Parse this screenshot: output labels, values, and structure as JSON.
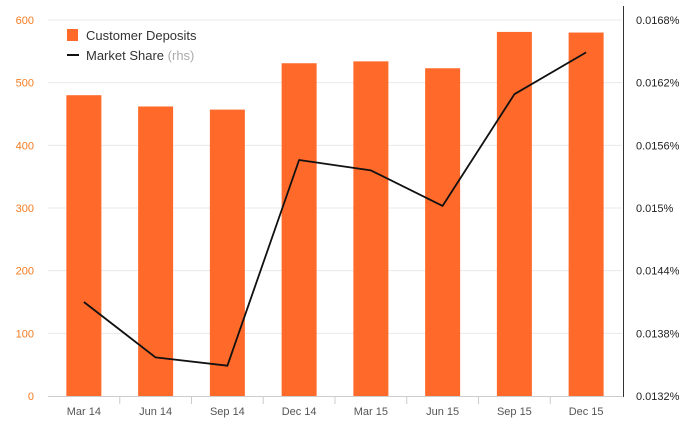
{
  "chart_data": {
    "type": "bar",
    "categories": [
      "Mar 14",
      "Jun 14",
      "Sep 14",
      "Dec 14",
      "Mar 15",
      "Jun 15",
      "Sep 15",
      "Dec 15"
    ],
    "series": [
      {
        "name": "Customer Deposits",
        "type": "bar",
        "axis": "left",
        "values": [
          480,
          462,
          457,
          531,
          534,
          523,
          581,
          580
        ]
      },
      {
        "name": "Market Share",
        "name_suffix": "(rhs)",
        "type": "line",
        "axis": "right",
        "values": [
          0.0141,
          0.01357,
          0.01349,
          0.01546,
          0.01536,
          0.01502,
          0.01609,
          0.01649
        ]
      }
    ],
    "y_left": {
      "ylim": [
        0,
        600
      ],
      "ticks": [
        0,
        100,
        200,
        300,
        400,
        500,
        600
      ],
      "tick_labels": [
        "0",
        "100",
        "200",
        "300",
        "400",
        "500",
        "600"
      ]
    },
    "y_right": {
      "ylim": [
        0.0132,
        0.0168
      ],
      "ticks": [
        0.0132,
        0.0138,
        0.0144,
        0.015,
        0.0156,
        0.0162,
        0.0168
      ],
      "tick_labels": [
        "0.0132%",
        "0.0138%",
        "0.0144%",
        "0.015%",
        "0.0156%",
        "0.0162%",
        "0.0168%"
      ]
    },
    "title": "",
    "xlabel": "",
    "ylabel": "",
    "grid": true,
    "legend": "top-left",
    "colors": {
      "bar": "#ff6a2b",
      "line": "#111111",
      "left_axis_text": "#f47b20",
      "grid": "#e8e8e8"
    }
  }
}
